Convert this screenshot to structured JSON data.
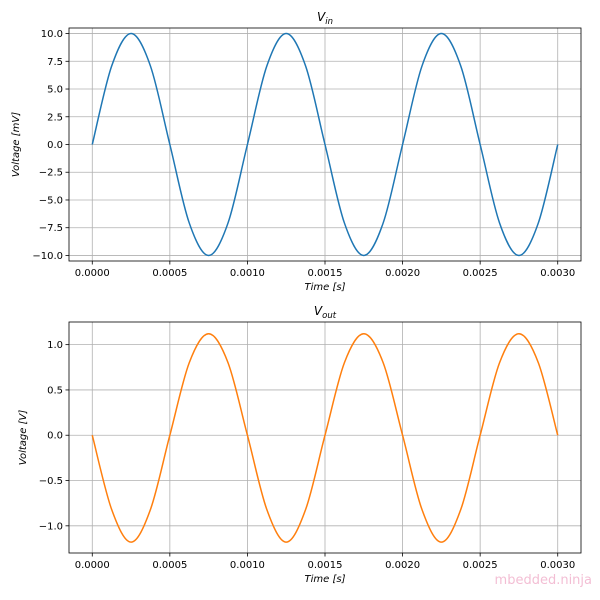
{
  "watermark": "mbedded.ninja",
  "chart_data": [
    {
      "type": "line",
      "title": {
        "base": "V",
        "sub": "in"
      },
      "xlabel": "Time [s]",
      "ylabel": "Voltage [mV]",
      "xlim": [
        -0.00015,
        0.00315
      ],
      "ylim": [
        -10.5,
        10.5
      ],
      "xticks": [
        "0.0000",
        "0.0005",
        "0.0010",
        "0.0015",
        "0.0020",
        "0.0025",
        "0.0030"
      ],
      "xtick_values": [
        0,
        0.0005,
        0.001,
        0.0015,
        0.002,
        0.0025,
        0.003
      ],
      "yticks": [
        "10.0",
        "7.5",
        "5.0",
        "2.5",
        "0.0",
        "−2.5",
        "−5.0",
        "−7.5",
        "−10.0"
      ],
      "ytick_values": [
        10,
        7.5,
        5,
        2.5,
        0,
        -2.5,
        -5,
        -7.5,
        -10
      ],
      "grid": true,
      "series": [
        {
          "color": "#1f77b4",
          "x": [
            0,
            0.000125,
            0.00025,
            0.000375,
            0.0005,
            0.000625,
            0.00075,
            0.000875,
            0.001,
            0.001125,
            0.00125,
            0.001375,
            0.0015,
            0.001625,
            0.00175,
            0.001875,
            0.002,
            0.002125,
            0.00225,
            0.002375,
            0.0025,
            0.002625,
            0.00275,
            0.002875,
            0.003
          ],
          "y": [
            0,
            7.07,
            10,
            7.07,
            0,
            -7.07,
            -10,
            -7.07,
            0,
            7.07,
            10,
            7.07,
            0,
            -7.07,
            -10,
            -7.07,
            0,
            7.07,
            10,
            7.07,
            0,
            -7.07,
            -10,
            -7.07,
            0
          ]
        }
      ]
    },
    {
      "type": "line",
      "title": {
        "base": "V",
        "sub": "out"
      },
      "xlabel": "Time [s]",
      "ylabel": "Voltage [V]",
      "xlim": [
        -0.00015,
        0.00315
      ],
      "ylim": [
        -1.3,
        1.25
      ],
      "xticks": [
        "0.0000",
        "0.0005",
        "0.0010",
        "0.0015",
        "0.0020",
        "0.0025",
        "0.0030"
      ],
      "xtick_values": [
        0,
        0.0005,
        0.001,
        0.0015,
        0.002,
        0.0025,
        0.003
      ],
      "yticks": [
        "1.0",
        "0.5",
        "0.0",
        "−0.5",
        "−1.0"
      ],
      "ytick_values": [
        1,
        0.5,
        0,
        -0.5,
        -1
      ],
      "grid": true,
      "series": [
        {
          "color": "#ff7f0e",
          "x": [
            0,
            0.000125,
            0.00025,
            0.000375,
            0.0005,
            0.000625,
            0.00075,
            0.000875,
            0.001,
            0.001125,
            0.00125,
            0.001375,
            0.0015,
            0.001625,
            0.00175,
            0.001875,
            0.002,
            0.002125,
            0.00225,
            0.002375,
            0.0025,
            0.002625,
            0.00275,
            0.002875,
            0.003
          ],
          "y": [
            0,
            -0.82,
            -1.18,
            -0.82,
            0.0,
            0.8,
            1.12,
            0.8,
            0.0,
            -0.82,
            -1.18,
            -0.82,
            0.0,
            0.8,
            1.12,
            0.8,
            0.0,
            -0.82,
            -1.18,
            -0.82,
            0.0,
            0.8,
            1.12,
            0.8,
            0
          ]
        }
      ]
    }
  ]
}
